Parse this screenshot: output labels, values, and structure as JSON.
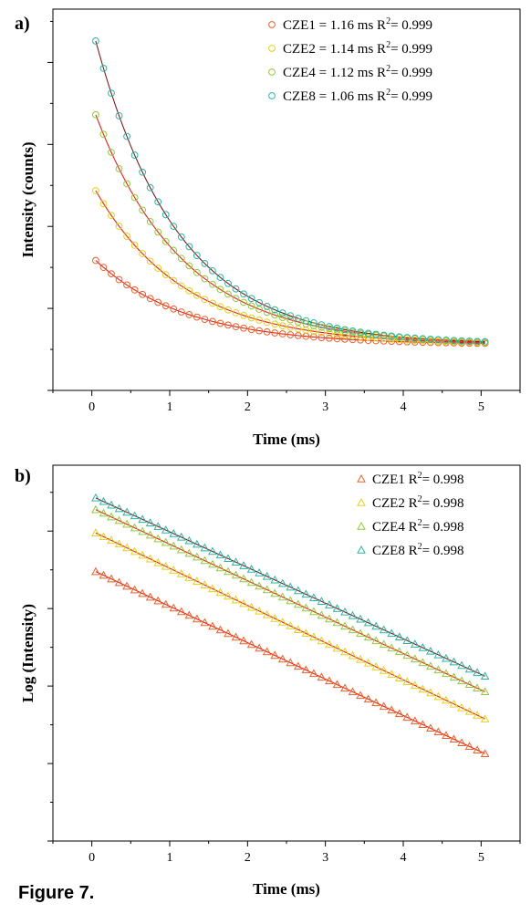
{
  "caption": "Figure 7.",
  "chart_data": [
    {
      "type": "scatter",
      "panel_label": "a)",
      "xlabel": "Time (ms)",
      "ylabel": "Intensity (counts)",
      "xlim": [
        -0.5,
        5.5
      ],
      "x_ticks": [
        0,
        1,
        2,
        3,
        4,
        5
      ],
      "ylim": [
        -0.5,
        4.15
      ],
      "grid": false,
      "legend_position": "top-right",
      "fit_lines": true,
      "fit_color": "#e0201c",
      "series": [
        {
          "name": "CZE1",
          "label": "CZE1 = 1.16 ms R",
          "sup": "2",
          "r2_text": "= 0.999",
          "color": "#e8622a",
          "amplitude": 1.07,
          "tau": 1.16,
          "baseline": 0.06
        },
        {
          "name": "CZE2",
          "label": "CZE2 = 1.14 ms R",
          "sup": "2",
          "r2_text": "= 0.999",
          "color": "#e3d21c",
          "amplitude": 1.96,
          "tau": 1.14,
          "baseline": 0.06
        },
        {
          "name": "CZE4",
          "label": "CZE4 = 1.12 ms R",
          "sup": "2",
          "r2_text": "= 0.999",
          "color": "#94c83a",
          "amplitude": 2.93,
          "tau": 1.12,
          "baseline": 0.06
        },
        {
          "name": "CZE8",
          "label": "CZE8 = 1.06 ms R",
          "sup": "2",
          "r2_text": "= 0.999",
          "color": "#2bb5a4",
          "amplitude": 3.88,
          "tau": 1.06,
          "baseline": 0.06
        }
      ],
      "x_samples": {
        "start": 0.05,
        "end": 5.05,
        "step": 0.1
      }
    },
    {
      "type": "scatter",
      "panel_label": "b)",
      "xlabel": "Time (ms)",
      "ylabel": "Log (Intensity)",
      "xlim": [
        -0.5,
        5.5
      ],
      "x_ticks": [
        0,
        1,
        2,
        3,
        4,
        5
      ],
      "ylim": [
        -3.5,
        1.35
      ],
      "grid": false,
      "legend_position": "top-right",
      "fit_lines": true,
      "fit_color": "#e0201c",
      "series": [
        {
          "name": "CZE1",
          "label": "CZE1 R",
          "sup": "2",
          "r2_text": "= 0.998",
          "color": "#e8622a",
          "intercept": 0.0,
          "slope": -0.47
        },
        {
          "name": "CZE2",
          "label": "CZE2 R",
          "sup": "2",
          "r2_text": "= 0.998",
          "color": "#e3d21c",
          "intercept": 0.5,
          "slope": -0.48
        },
        {
          "name": "CZE4",
          "label": "CZE4 R",
          "sup": "2",
          "r2_text": "= 0.998",
          "color": "#94c83a",
          "intercept": 0.8,
          "slope": -0.47
        },
        {
          "name": "CZE8",
          "label": "CZE8 R",
          "sup": "2",
          "r2_text": "= 0.998",
          "color": "#2bb5a4",
          "intercept": 0.95,
          "slope": -0.46
        }
      ],
      "x_samples": {
        "start": 0.05,
        "end": 5.05,
        "step": 0.1
      }
    }
  ]
}
